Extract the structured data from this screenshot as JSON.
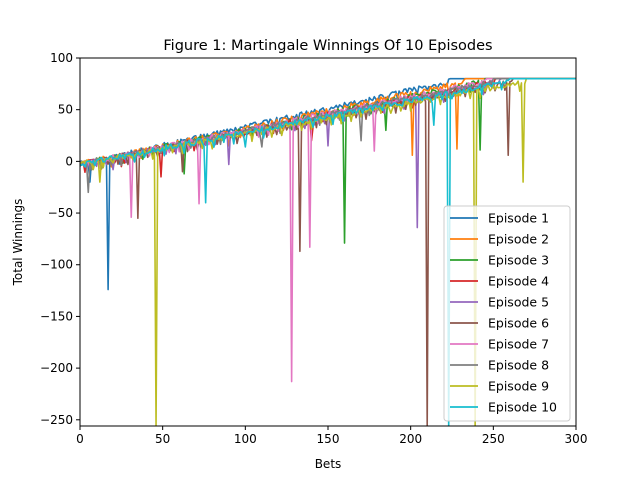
{
  "chart_data": {
    "type": "line",
    "title": "Figure 1: Martingale Winnings Of 10 Episodes",
    "xlabel": "Bets",
    "ylabel": "Total Winnings",
    "xlim": [
      0,
      300
    ],
    "ylim": [
      -256,
      100
    ],
    "xticks": [
      0,
      50,
      100,
      150,
      200,
      250,
      300
    ],
    "yticks": [
      -250,
      -200,
      -150,
      -100,
      -50,
      0,
      50,
      100
    ],
    "xtick_labels": [
      "0",
      "50",
      "100",
      "150",
      "200",
      "250",
      "300"
    ],
    "ytick_labels": [
      "−250",
      "−200",
      "−150",
      "−100",
      "−50",
      "0",
      "50",
      "100"
    ],
    "grid": false,
    "legend_position": "lower-right",
    "plateau": 80,
    "series": [
      {
        "name": "Episode 1",
        "color": "#1f77b4",
        "reach_bet": 224,
        "dips": [
          [
            17,
            -124
          ],
          [
            6,
            -20
          ]
        ]
      },
      {
        "name": "Episode 2",
        "color": "#ff7f0e",
        "reach_bet": 233,
        "dips": [
          [
            201,
            6
          ],
          [
            228,
            12
          ],
          [
            90,
            15
          ]
        ]
      },
      {
        "name": "Episode 3",
        "color": "#2ca02c",
        "reach_bet": 245,
        "dips": [
          [
            160,
            -79
          ],
          [
            242,
            11
          ],
          [
            63,
            -12
          ],
          [
            185,
            30
          ]
        ]
      },
      {
        "name": "Episode 4",
        "color": "#d62728",
        "reach_bet": 252,
        "dips": [
          [
            49,
            -15
          ],
          [
            25,
            -5
          ],
          [
            140,
            20
          ]
        ]
      },
      {
        "name": "Episode 5",
        "color": "#9467bd",
        "reach_bet": 255,
        "dips": [
          [
            204,
            -64
          ],
          [
            90,
            -3
          ],
          [
            20,
            -8
          ],
          [
            150,
            15
          ]
        ]
      },
      {
        "name": "Episode 6",
        "color": "#8c564b",
        "reach_bet": 262,
        "dips": [
          [
            210,
            -256
          ],
          [
            133,
            -87
          ],
          [
            259,
            6
          ],
          [
            35,
            -55
          ],
          [
            62,
            -10
          ]
        ]
      },
      {
        "name": "Episode 7",
        "color": "#e377c2",
        "reach_bet": 246,
        "dips": [
          [
            128,
            -213
          ],
          [
            139,
            -83
          ],
          [
            31,
            -54
          ],
          [
            72,
            -41
          ],
          [
            178,
            10
          ]
        ]
      },
      {
        "name": "Episode 8",
        "color": "#7f7f7f",
        "reach_bet": 250,
        "dips": [
          [
            5,
            -30
          ],
          [
            110,
            14
          ],
          [
            170,
            20
          ]
        ]
      },
      {
        "name": "Episode 9",
        "color": "#bcbd22",
        "reach_bet": 270,
        "dips": [
          [
            46,
            -256
          ],
          [
            239,
            -256
          ],
          [
            268,
            -20
          ],
          [
            12,
            -20
          ]
        ]
      },
      {
        "name": "Episode 10",
        "color": "#17becf",
        "reach_bet": 260,
        "dips": [
          [
            223,
            -256
          ],
          [
            76,
            -40
          ],
          [
            214,
            35
          ],
          [
            100,
            14
          ]
        ]
      }
    ]
  }
}
